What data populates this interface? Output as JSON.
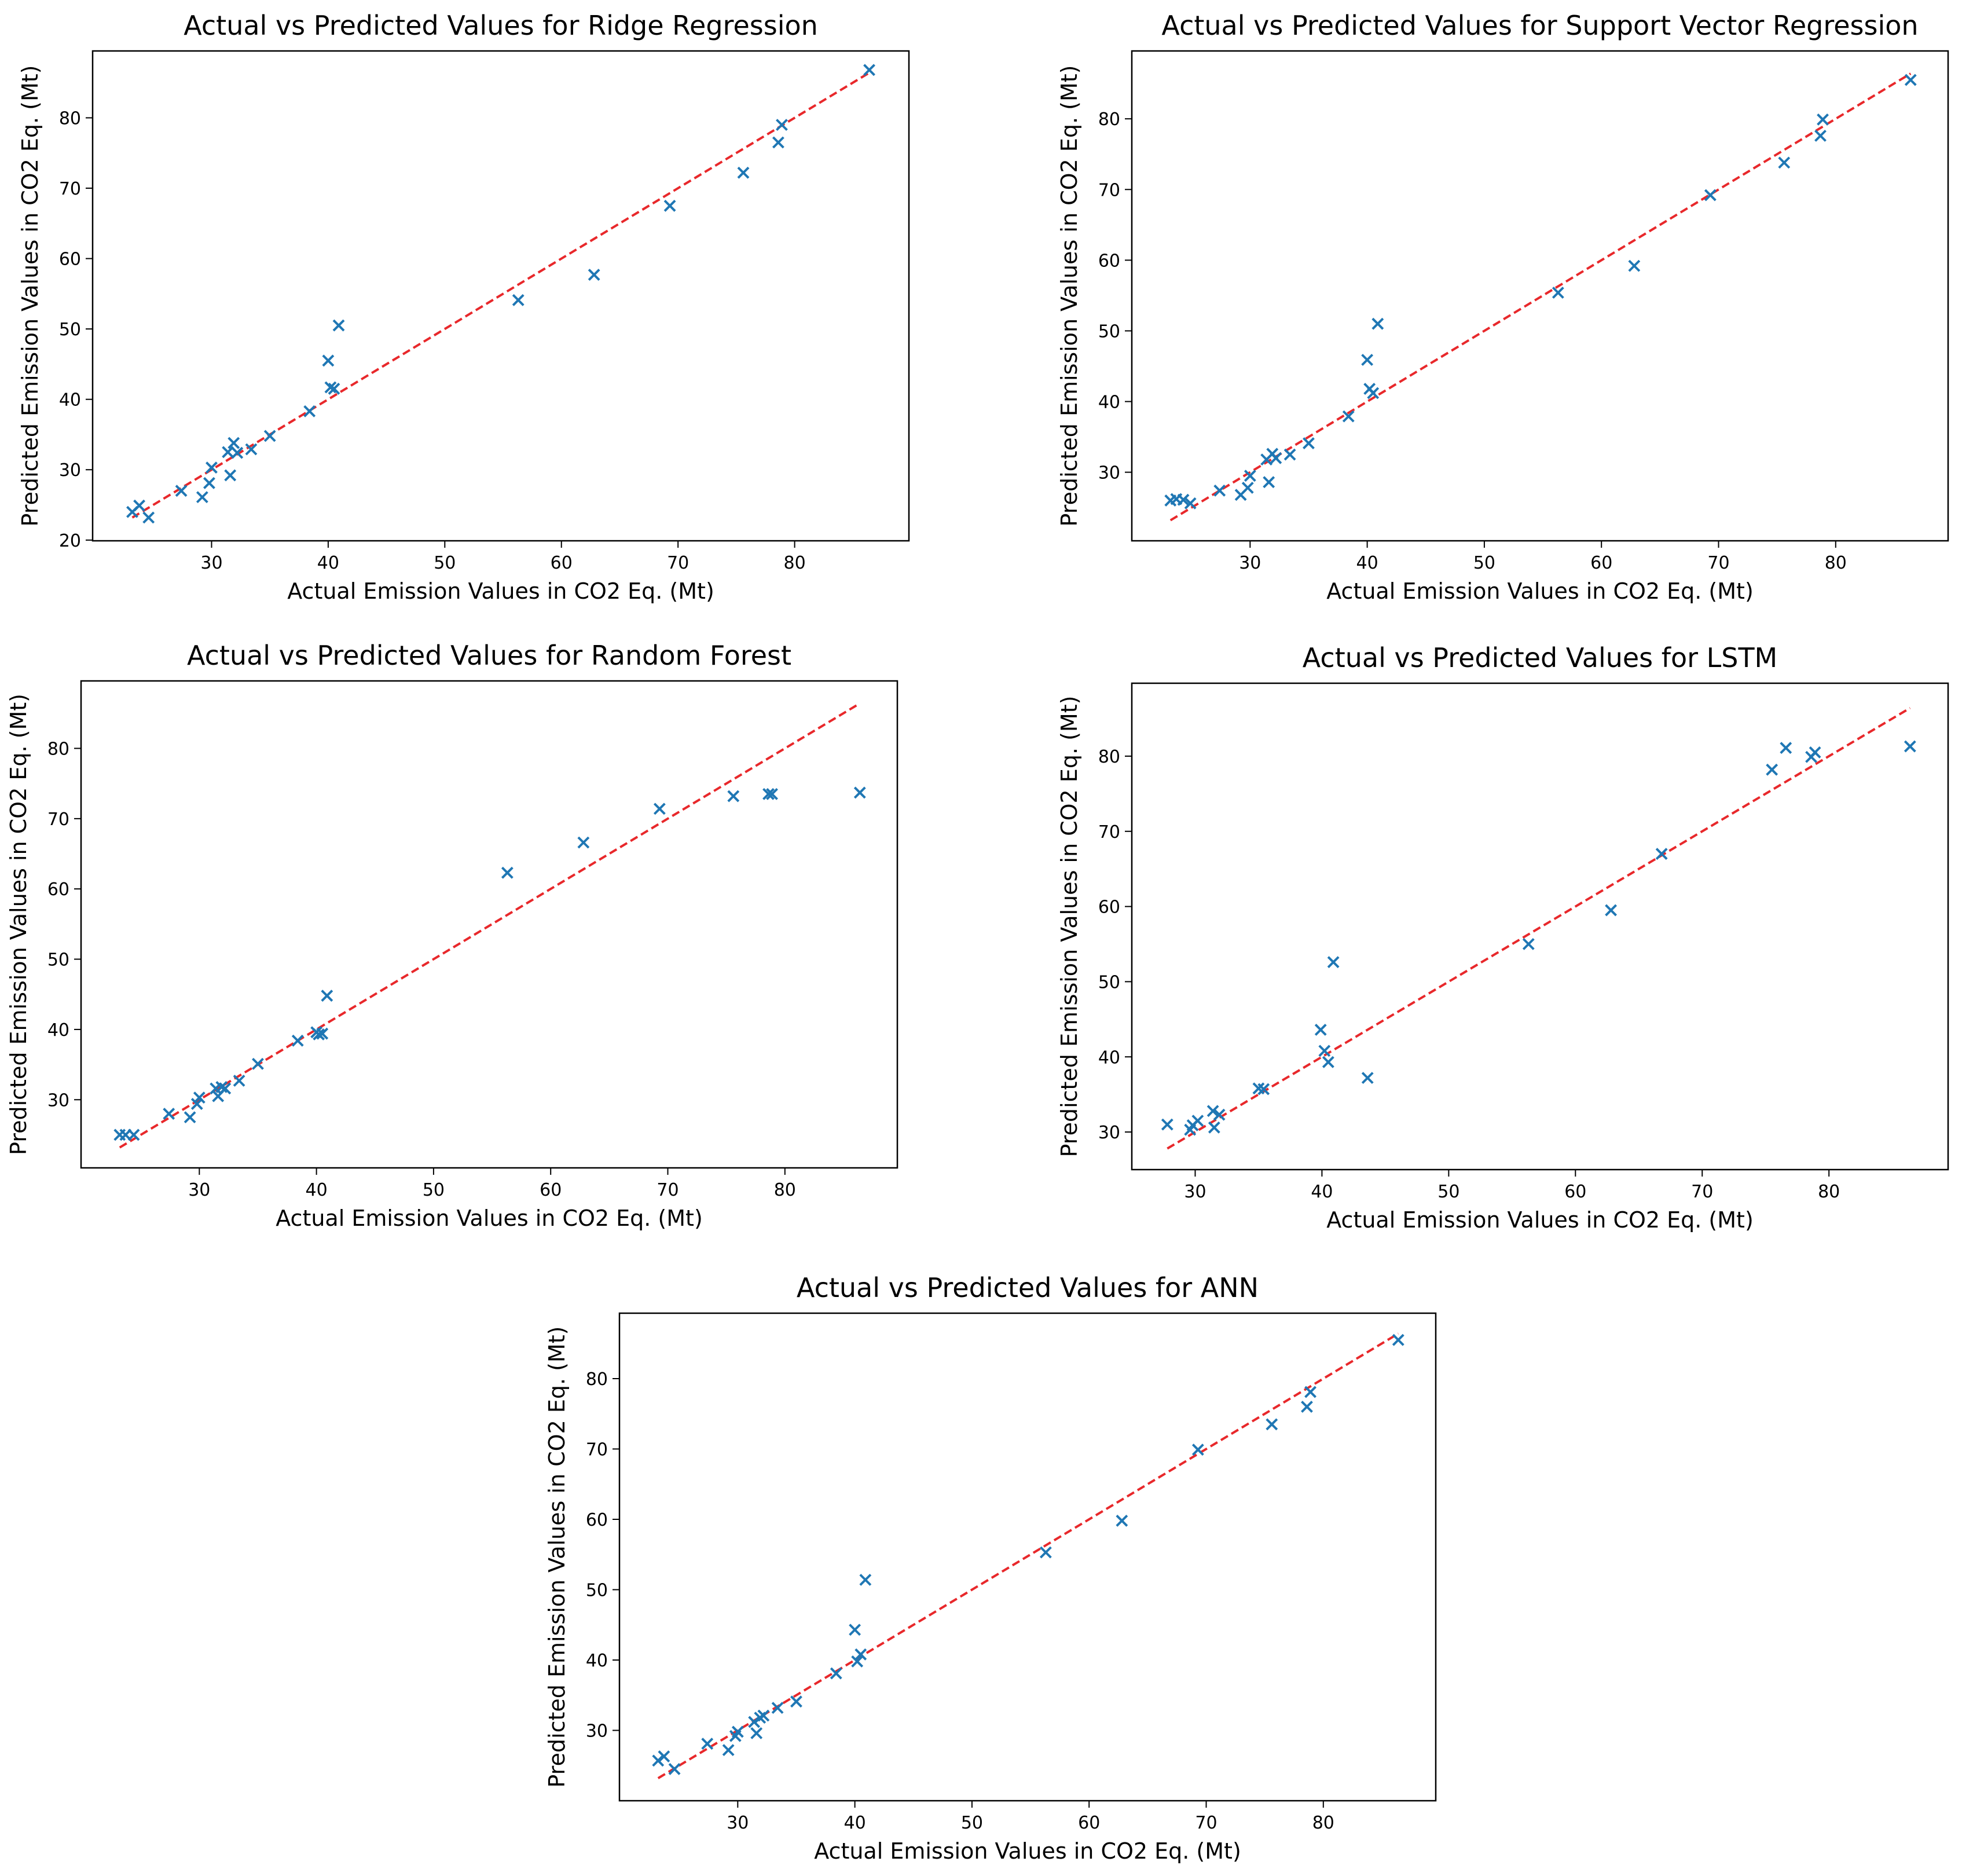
{
  "chart_data": [
    {
      "type": "scatter",
      "title": "Actual vs Predicted Values for Ridge Regression",
      "xlabel": "Actual Emission Values in CO2 Eq. (Mt)",
      "ylabel": "Predicted Emission Values in CO2 Eq. (Mt)",
      "xlim": [
        19.8,
        89.8
      ],
      "ylim": [
        19.9,
        89.5
      ],
      "xticks": [
        30,
        40,
        50,
        60,
        70,
        80
      ],
      "yticks": [
        20,
        30,
        40,
        50,
        60,
        70,
        80
      ],
      "reference_line": {
        "from": [
          23.2,
          23.2
        ],
        "to": [
          86.4,
          86.4
        ],
        "color": "#e8282b",
        "style": "dashed"
      },
      "marker": "x",
      "marker_color": "#1f77b4",
      "points": [
        [
          23.2,
          24.0
        ],
        [
          23.8,
          24.9
        ],
        [
          24.6,
          23.2
        ],
        [
          27.4,
          27.0
        ],
        [
          29.2,
          26.1
        ],
        [
          29.8,
          28.1
        ],
        [
          30.0,
          30.3
        ],
        [
          31.4,
          32.5
        ],
        [
          31.6,
          29.2
        ],
        [
          31.9,
          33.8
        ],
        [
          32.2,
          32.4
        ],
        [
          33.4,
          32.9
        ],
        [
          35.0,
          34.8
        ],
        [
          38.4,
          38.3
        ],
        [
          40.0,
          45.5
        ],
        [
          40.2,
          41.7
        ],
        [
          40.5,
          41.5
        ],
        [
          40.9,
          50.5
        ],
        [
          56.3,
          54.1
        ],
        [
          62.8,
          57.7
        ],
        [
          69.3,
          67.5
        ],
        [
          75.6,
          72.2
        ],
        [
          78.6,
          76.5
        ],
        [
          78.9,
          79.0
        ],
        [
          86.4,
          86.8
        ]
      ]
    },
    {
      "type": "scatter",
      "title": "Actual vs Predicted Values for Support Vector Regression",
      "xlabel": "Actual Emission Values in CO2 Eq. (Mt)",
      "ylabel": "Predicted Emission Values in CO2 Eq. (Mt)",
      "xlim": [
        19.9,
        89.6
      ],
      "ylim": [
        20.3,
        89.6
      ],
      "xticks": [
        30,
        40,
        50,
        60,
        70,
        80
      ],
      "yticks": [
        30,
        40,
        50,
        60,
        70,
        80
      ],
      "reference_line": {
        "from": [
          23.2,
          23.2
        ],
        "to": [
          86.4,
          86.4
        ],
        "color": "#e8282b",
        "style": "dashed"
      },
      "marker": "x",
      "marker_color": "#1f77b4",
      "points": [
        [
          23.2,
          26.0
        ],
        [
          23.7,
          26.2
        ],
        [
          24.3,
          26.1
        ],
        [
          24.9,
          25.6
        ],
        [
          27.4,
          27.4
        ],
        [
          29.2,
          26.8
        ],
        [
          29.8,
          27.8
        ],
        [
          30.0,
          29.5
        ],
        [
          31.4,
          31.8
        ],
        [
          31.6,
          28.6
        ],
        [
          31.9,
          32.6
        ],
        [
          32.2,
          32.0
        ],
        [
          33.4,
          32.5
        ],
        [
          35.0,
          34.1
        ],
        [
          38.4,
          37.9
        ],
        [
          40.0,
          45.9
        ],
        [
          40.2,
          41.8
        ],
        [
          40.5,
          41.2
        ],
        [
          40.9,
          51.0
        ],
        [
          56.3,
          55.4
        ],
        [
          62.8,
          59.2
        ],
        [
          69.3,
          69.2
        ],
        [
          75.6,
          73.8
        ],
        [
          78.7,
          77.6
        ],
        [
          78.9,
          79.9
        ],
        [
          86.4,
          85.5
        ]
      ]
    },
    {
      "type": "scatter",
      "title": "Actual vs Predicted Values for Random Forest",
      "xlabel": "Actual Emission Values in CO2 Eq. (Mt)",
      "ylabel": "Predicted Emission Values in CO2 Eq. (Mt)",
      "xlim": [
        19.9,
        89.6
      ],
      "ylim": [
        20.3,
        89.6
      ],
      "xticks": [
        30,
        40,
        50,
        60,
        70,
        80
      ],
      "yticks": [
        30,
        40,
        50,
        60,
        70,
        80
      ],
      "reference_line": {
        "from": [
          23.2,
          23.2
        ],
        "to": [
          86.4,
          86.4
        ],
        "color": "#e8282b",
        "style": "dashed"
      },
      "marker": "x",
      "marker_color": "#1f77b4",
      "points": [
        [
          23.2,
          25.0
        ],
        [
          23.7,
          25.0
        ],
        [
          24.4,
          25.0
        ],
        [
          27.4,
          28.0
        ],
        [
          29.2,
          27.5
        ],
        [
          29.8,
          29.4
        ],
        [
          30.0,
          30.3
        ],
        [
          31.4,
          31.6
        ],
        [
          31.6,
          30.5
        ],
        [
          31.9,
          31.8
        ],
        [
          32.2,
          31.6
        ],
        [
          33.4,
          32.7
        ],
        [
          35.0,
          35.1
        ],
        [
          38.4,
          38.4
        ],
        [
          40.0,
          39.6
        ],
        [
          40.2,
          39.3
        ],
        [
          40.5,
          39.4
        ],
        [
          40.9,
          44.8
        ],
        [
          56.3,
          62.3
        ],
        [
          62.8,
          66.6
        ],
        [
          69.3,
          71.4
        ],
        [
          75.6,
          73.2
        ],
        [
          78.6,
          73.5
        ],
        [
          78.9,
          73.5
        ],
        [
          86.4,
          73.7
        ]
      ]
    },
    {
      "type": "scatter",
      "title": "Actual vs Predicted Values for LSTM",
      "xlabel": "Actual Emission Values in CO2 Eq. (Mt)",
      "ylabel": "Predicted Emission Values in CO2 Eq. (Mt)",
      "xlim": [
        25.0,
        89.4
      ],
      "ylim": [
        25.0,
        89.7
      ],
      "xticks": [
        30,
        40,
        50,
        60,
        70,
        80
      ],
      "yticks": [
        30,
        40,
        50,
        60,
        70,
        80
      ],
      "reference_line": {
        "from": [
          27.8,
          27.8
        ],
        "to": [
          86.4,
          86.4
        ],
        "color": "#e8282b",
        "style": "dashed"
      },
      "marker": "x",
      "marker_color": "#1f77b4",
      "points": [
        [
          27.8,
          31.0
        ],
        [
          29.6,
          30.3
        ],
        [
          29.8,
          30.9
        ],
        [
          30.2,
          31.5
        ],
        [
          31.4,
          32.8
        ],
        [
          31.5,
          30.6
        ],
        [
          31.9,
          32.3
        ],
        [
          35.0,
          35.8
        ],
        [
          35.4,
          35.7
        ],
        [
          39.9,
          43.6
        ],
        [
          40.2,
          40.8
        ],
        [
          40.5,
          39.3
        ],
        [
          40.9,
          52.6
        ],
        [
          43.6,
          37.2
        ],
        [
          56.3,
          55.0
        ],
        [
          62.8,
          59.5
        ],
        [
          66.8,
          67.0
        ],
        [
          75.5,
          78.2
        ],
        [
          76.6,
          81.1
        ],
        [
          78.6,
          79.9
        ],
        [
          78.9,
          80.5
        ],
        [
          86.4,
          81.3
        ]
      ]
    },
    {
      "type": "scatter",
      "title": "Actual vs Predicted Values for ANN",
      "xlabel": "Actual Emission Values in CO2 Eq. (Mt)",
      "ylabel": "Predicted Emission Values in CO2 Eq. (Mt)",
      "xlim": [
        19.9,
        89.6
      ],
      "ylim": [
        20.0,
        89.3
      ],
      "xticks": [
        30,
        40,
        50,
        60,
        70,
        80
      ],
      "yticks": [
        30,
        40,
        50,
        60,
        70,
        80
      ],
      "reference_line": {
        "from": [
          23.2,
          23.2
        ],
        "to": [
          86.4,
          86.4
        ],
        "color": "#e8282b",
        "style": "dashed"
      },
      "marker": "x",
      "marker_color": "#1f77b4",
      "points": [
        [
          23.2,
          25.7
        ],
        [
          23.7,
          26.3
        ],
        [
          24.6,
          24.5
        ],
        [
          27.4,
          28.1
        ],
        [
          29.2,
          27.2
        ],
        [
          29.8,
          29.2
        ],
        [
          30.0,
          29.8
        ],
        [
          31.4,
          31.2
        ],
        [
          31.6,
          29.6
        ],
        [
          31.9,
          31.8
        ],
        [
          32.2,
          32.1
        ],
        [
          33.4,
          33.2
        ],
        [
          35.0,
          34.1
        ],
        [
          38.4,
          38.1
        ],
        [
          40.0,
          44.3
        ],
        [
          40.2,
          39.8
        ],
        [
          40.5,
          40.8
        ],
        [
          40.9,
          51.4
        ],
        [
          56.3,
          55.3
        ],
        [
          62.8,
          59.8
        ],
        [
          69.3,
          69.9
        ],
        [
          75.6,
          73.5
        ],
        [
          78.6,
          76.0
        ],
        [
          78.9,
          78.1
        ],
        [
          86.4,
          85.5
        ]
      ]
    }
  ]
}
